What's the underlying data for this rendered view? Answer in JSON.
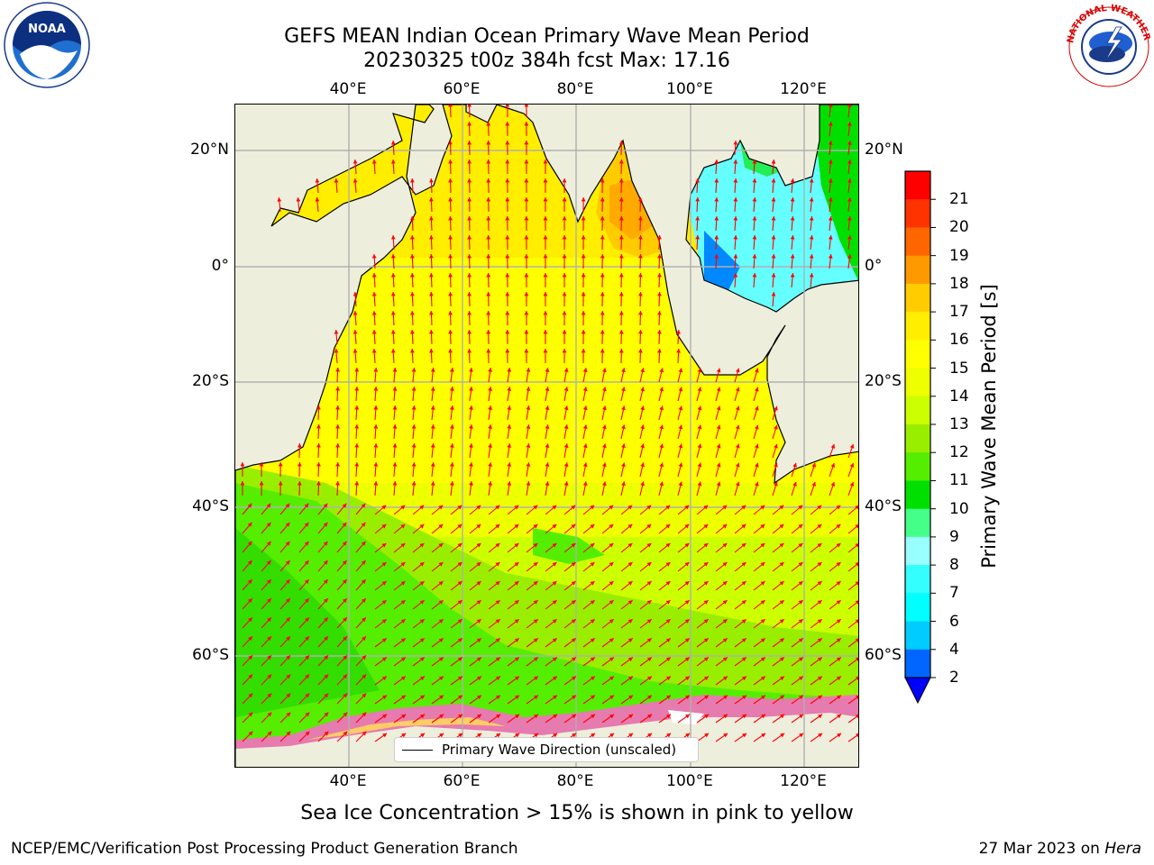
{
  "header": {
    "title_line1": "GEFS MEAN Indian Ocean Primary Wave Mean Period",
    "title_line2": "20230325 t00z 384h fcst   Max: 17.16"
  },
  "logos": {
    "left": "noaa-logo",
    "right": "national-weather-service-logo",
    "left_text": "NOAA",
    "right_text": "NATIONAL WEATHER SERVICE"
  },
  "map": {
    "lon_ticks": [
      "40°E",
      "60°E",
      "80°E",
      "100°E",
      "120°E"
    ],
    "lat_ticks": [
      "20°N",
      "0°",
      "20°S",
      "40°S",
      "60°S"
    ],
    "extent": {
      "lon_min": 20,
      "lon_max": 130,
      "lat_min": -76,
      "lat_max": 28
    },
    "land_color": "#eeeedd",
    "grid_color": "#b0b0b0",
    "arrow_color": "#ff0000",
    "legend_label": "Primary Wave Direction (unscaled)"
  },
  "colorbar": {
    "label": "Primary Wave Mean Period [s]",
    "tick_labels": [
      "2",
      "4",
      "6",
      "7",
      "8",
      "9",
      "10",
      "11",
      "12",
      "13",
      "14",
      "15",
      "16",
      "17",
      "18",
      "19",
      "20",
      "21"
    ],
    "colors": [
      "#0066ff",
      "#00ccff",
      "#00ffff",
      "#33ffff",
      "#99ffff",
      "#44ff88",
      "#00e000",
      "#55ee00",
      "#99ee00",
      "#ccff00",
      "#eeff00",
      "#ffff00",
      "#ffee00",
      "#ffcc00",
      "#ff9900",
      "#ff6600",
      "#ff3300",
      "#ff0000"
    ],
    "under_color": "#0000ff",
    "max_value": 17.16
  },
  "caption": "Sea Ice Concentration > 15% is shown in pink to yellow",
  "footer": {
    "left": "NCEP/EMC/Verification Post Processing Product Generation Branch",
    "right_date": "27 Mar 2023 on",
    "right_machine": "Hera"
  }
}
